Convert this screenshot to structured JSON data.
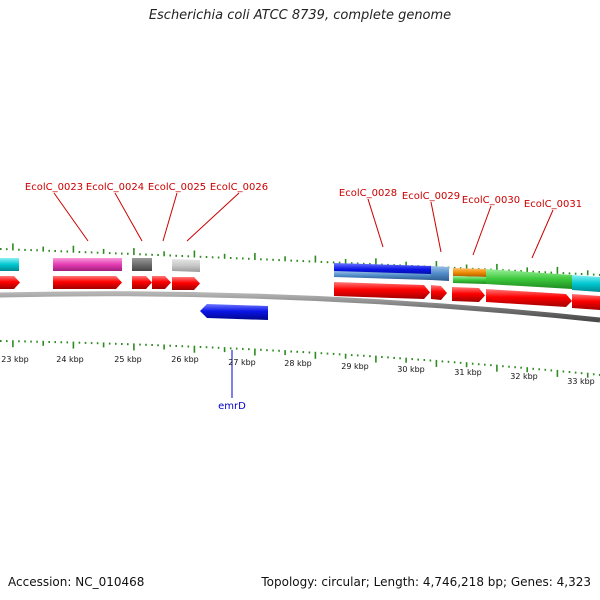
{
  "title": "Escherichia coli ATCC 8739, complete genome",
  "footer": {
    "accession": "Accession: NC_010468",
    "summary": "Topology: circular; Length: 4,746,218 bp; Genes: 4,323"
  },
  "axis": {
    "tick_labels": [
      "23 kbp",
      "24 kbp",
      "25 kbp",
      "26 kbp",
      "27 kbp",
      "28 kbp",
      "29 kbp",
      "30 kbp",
      "31 kbp",
      "32 kbp",
      "33 kbp"
    ]
  },
  "gene_labels": {
    "ecolc_0023": "EcolC_0023",
    "ecolc_0024": "EcolC_0024",
    "ecolc_0025": "EcolC_0025",
    "ecolc_0026": "EcolC_0026",
    "ecolc_0028": "EcolC_0028",
    "ecolc_0029": "EcolC_0029",
    "ecolc_0030": "EcolC_0030",
    "ecolc_0031": "EcolC_0031",
    "emrd": "emrD"
  },
  "colors": {
    "gene_red": "#ff0000",
    "label_red": "#cc0000",
    "tick_green": "#2e8b22",
    "gene_blue": "#0a14e6",
    "label_blue": "#0000cc",
    "backbone": "#8c8c8c",
    "cyan": "#00c8d2",
    "magenta": "#e63cb4",
    "dark_gray": "#6e6e6e",
    "light_gray": "#c8c8c8",
    "steel_blue": "#508cc8",
    "orange": "#f08c00",
    "green": "#3cc83c"
  }
}
